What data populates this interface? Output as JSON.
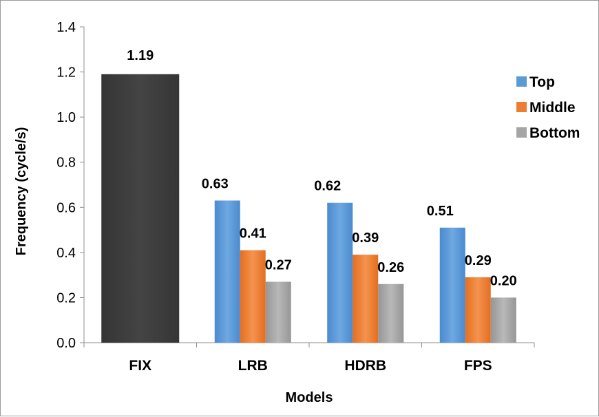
{
  "chart_data": {
    "type": "bar",
    "xlabel": "Models",
    "ylabel": "Frequency (cycle/s)",
    "ylim": [
      0,
      1.4
    ],
    "yticks": [
      "0.0",
      "0.2",
      "0.4",
      "0.6",
      "0.8",
      "1.0",
      "1.2",
      "1.4"
    ],
    "legend_position": "right",
    "categories": [
      "FIX",
      "LRB",
      "HDRB",
      "FPS"
    ],
    "fix_bar": {
      "category": "FIX",
      "value": 1.19,
      "label": "1.19",
      "color": "#404040"
    },
    "series": [
      {
        "name": "Top",
        "color": "#5b9bd5",
        "values": [
          null,
          0.63,
          0.62,
          0.51
        ],
        "labels": [
          "",
          "0.63",
          "0.62",
          "0.51"
        ]
      },
      {
        "name": "Middle",
        "color": "#ed7d31",
        "values": [
          null,
          0.41,
          0.39,
          0.29
        ],
        "labels": [
          "",
          "0.41",
          "0.39",
          "0.29"
        ]
      },
      {
        "name": "Bottom",
        "color": "#a5a5a5",
        "values": [
          null,
          0.27,
          0.26,
          0.2
        ],
        "labels": [
          "",
          "0.27",
          "0.26",
          "0.20"
        ]
      }
    ]
  }
}
